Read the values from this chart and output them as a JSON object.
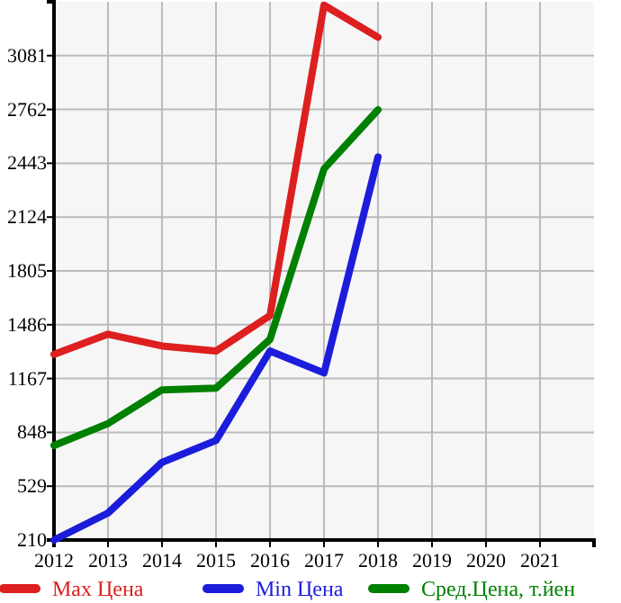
{
  "chart_data": {
    "type": "line",
    "x": [
      2012,
      2013,
      2014,
      2015,
      2016,
      2017,
      2018
    ],
    "series": [
      {
        "name": "Max Цена",
        "color": "#dd1f1f",
        "values": [
          1310,
          1430,
          1360,
          1330,
          1540,
          3380,
          3190
        ]
      },
      {
        "name": "Min Цена",
        "color": "#1c1cdc",
        "values": [
          210,
          370,
          670,
          800,
          1330,
          1200,
          2480
        ]
      },
      {
        "name": "Сред.Цена, т.йен",
        "color": "#008000",
        "values": [
          770,
          900,
          1100,
          1110,
          1400,
          2410,
          2760
        ]
      }
    ],
    "xlim": [
      2012,
      2022
    ],
    "xticks": [
      2012,
      2013,
      2014,
      2015,
      2016,
      2017,
      2018,
      2019,
      2020,
      2021
    ],
    "ylim": [
      210,
      3400
    ],
    "yticks": [
      210,
      529,
      848,
      1167,
      1486,
      1805,
      2124,
      2443,
      2762,
      3081
    ],
    "grid": true,
    "legend": "bottom",
    "marker": "none",
    "line_style": "solid"
  }
}
